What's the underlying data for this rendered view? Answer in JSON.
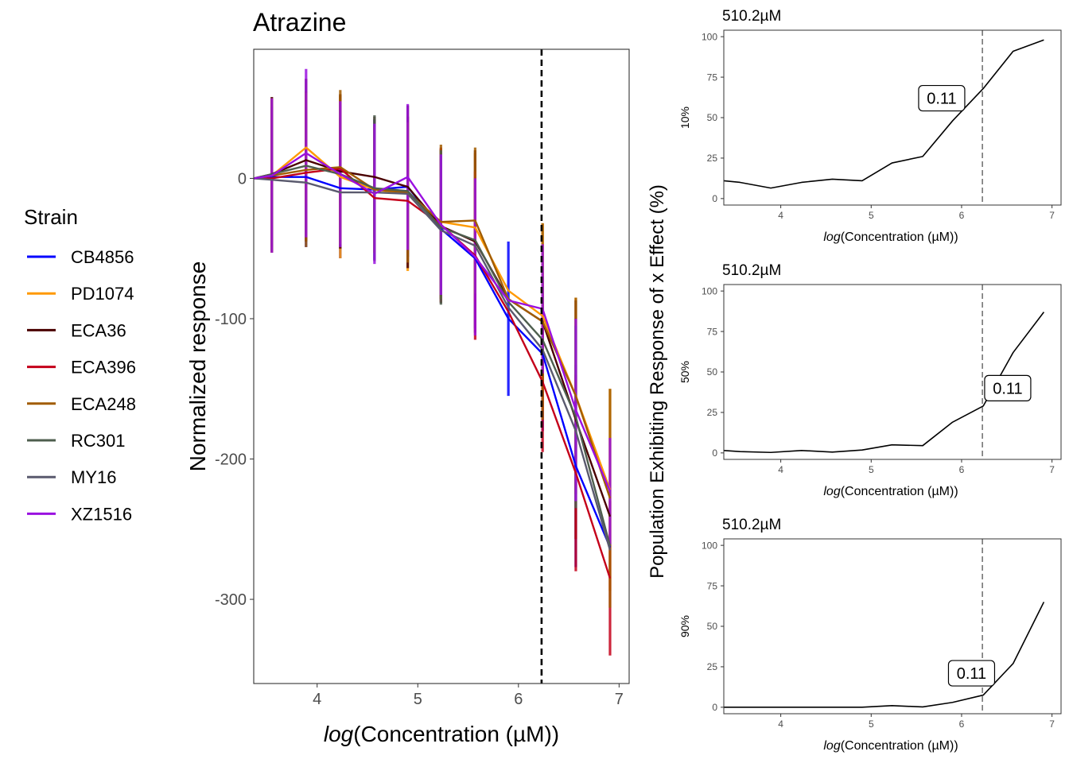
{
  "legend": {
    "title": "Strain",
    "items": [
      {
        "name": "CB4856",
        "color": "#0000FF"
      },
      {
        "name": "PD1074",
        "color": "#FF9900"
      },
      {
        "name": "ECA36",
        "color": "#4A0000"
      },
      {
        "name": "ECA396",
        "color": "#C4001A"
      },
      {
        "name": "ECA248",
        "color": "#A15C00"
      },
      {
        "name": "RC301",
        "color": "#4E5E4E"
      },
      {
        "name": "MY16",
        "color": "#5A5A6E"
      },
      {
        "name": "XZ1516",
        "color": "#9A10E0"
      }
    ]
  },
  "side_ylabel": "Population Exhibiting Response of x Effect (%)",
  "chart_data": [
    {
      "type": "line",
      "title": "Atrazine",
      "xlabel_prefix": "log",
      "xlabel_body": "Concentration (µM)",
      "ylabel": "Normalized response",
      "xlim": [
        3.37,
        7.1
      ],
      "ylim": [
        -360,
        92
      ],
      "xticks": [
        4,
        5,
        6,
        7
      ],
      "xtick_labels": [
        "4",
        "5",
        "6",
        "7"
      ],
      "yticks": [
        0,
        -100,
        -200,
        -300
      ],
      "ytick_labels": [
        "0",
        "-100",
        "-200",
        "-300"
      ],
      "vline_x": 6.23,
      "x": [
        3.37,
        3.55,
        3.89,
        4.23,
        4.57,
        4.9,
        5.23,
        5.57,
        5.9,
        6.24,
        6.57,
        6.91
      ],
      "series": [
        {
          "name": "CB4856",
          "color": "#0000FF",
          "values": [
            0,
            1,
            1,
            -7,
            -8,
            -6,
            -36,
            -57,
            -100,
            -125,
            -205,
            -263
          ],
          "err": [
            0,
            50,
            50,
            50,
            50,
            50,
            50,
            50,
            55,
            55,
            72,
            0
          ]
        },
        {
          "name": "PD1074",
          "color": "#FF9900",
          "values": [
            0,
            2,
            22,
            1,
            -8,
            -11,
            -31,
            -35,
            -80,
            -98,
            -155,
            -222
          ],
          "err": [
            0,
            55,
            40,
            58,
            45,
            55,
            52,
            53,
            0,
            66,
            70,
            72
          ]
        },
        {
          "name": "ECA36",
          "color": "#4A0000",
          "values": [
            0,
            3,
            13,
            5,
            1,
            -6,
            -34,
            -45,
            -86,
            -102,
            -172,
            -241
          ],
          "err": [
            0,
            55,
            58,
            55,
            43,
            58,
            55,
            65,
            0,
            0,
            85,
            0
          ]
        },
        {
          "name": "ECA396",
          "color": "#C4001A",
          "values": [
            0,
            0,
            4,
            7,
            -14,
            -16,
            -33,
            -55,
            -95,
            -145,
            -210,
            -285
          ],
          "err": [
            0,
            0,
            0,
            0,
            0,
            0,
            55,
            60,
            0,
            50,
            70,
            55
          ]
        },
        {
          "name": "ECA248",
          "color": "#A15C00",
          "values": [
            0,
            2,
            6,
            8,
            -8,
            -10,
            -31,
            -30,
            -86,
            -102,
            -155,
            -228
          ],
          "err": [
            0,
            55,
            55,
            55,
            45,
            50,
            55,
            52,
            0,
            70,
            70,
            78
          ]
        },
        {
          "name": "RC301",
          "color": "#4E5E4E",
          "values": [
            0,
            3,
            9,
            3,
            -7,
            -9,
            -35,
            -44,
            -88,
            -115,
            -170,
            -262
          ],
          "err": [
            0,
            0,
            0,
            0,
            52,
            0,
            55,
            0,
            0,
            0,
            65,
            0
          ]
        },
        {
          "name": "MY16",
          "color": "#5A5A6E",
          "values": [
            0,
            -1,
            -3,
            -10,
            -10,
            -11,
            -37,
            -48,
            -92,
            -122,
            -180,
            -265
          ],
          "err": [
            0,
            0,
            0,
            0,
            0,
            0,
            0,
            0,
            0,
            0,
            0,
            0
          ]
        },
        {
          "name": "XZ1516",
          "color": "#9A10E0",
          "values": [
            0,
            2,
            18,
            3,
            -11,
            1,
            -33,
            -56,
            -87,
            -93,
            -165,
            -223
          ],
          "err": [
            0,
            55,
            60,
            52,
            50,
            52,
            50,
            56,
            0,
            46,
            65,
            38
          ]
        }
      ]
    },
    {
      "type": "line",
      "title": "510.2µM",
      "ylabel": "10%",
      "xlabel_prefix": "log",
      "xlabel_body": "Concentration (µM)",
      "xlim": [
        3.37,
        7.1
      ],
      "ylim": [
        -4,
        104
      ],
      "xticks": [
        4,
        5,
        6,
        7
      ],
      "xtick_labels": [
        "4",
        "5",
        "6",
        "7"
      ],
      "yticks": [
        0,
        25,
        50,
        75,
        100
      ],
      "ytick_labels": [
        "0",
        "25",
        "50",
        "75",
        "100"
      ],
      "vline_x": 6.23,
      "annotation": "0.11",
      "annotation_x": 5.78,
      "annotation_y": 62,
      "x": [
        3.37,
        3.55,
        3.89,
        4.23,
        4.57,
        4.9,
        5.23,
        5.57,
        5.9,
        6.24,
        6.57,
        6.91
      ],
      "series": [
        {
          "values": [
            11,
            10,
            6.5,
            10,
            12,
            11,
            22,
            26,
            48,
            68,
            91,
            98
          ]
        }
      ]
    },
    {
      "type": "line",
      "title": "510.2µM",
      "ylabel": "50%",
      "xlabel_prefix": "log",
      "xlabel_body": "Concentration (µM)",
      "xlim": [
        3.37,
        7.1
      ],
      "ylim": [
        -4,
        104
      ],
      "xticks": [
        4,
        5,
        6,
        7
      ],
      "xtick_labels": [
        "4",
        "5",
        "6",
        "7"
      ],
      "yticks": [
        0,
        25,
        50,
        75,
        100
      ],
      "ytick_labels": [
        "0",
        "25",
        "50",
        "75",
        "100"
      ],
      "vline_x": 6.23,
      "annotation": "0.11",
      "annotation_x": 6.51,
      "annotation_y": 40,
      "x": [
        3.37,
        3.55,
        3.89,
        4.23,
        4.57,
        4.9,
        5.23,
        5.57,
        5.9,
        6.24,
        6.57,
        6.91
      ],
      "series": [
        {
          "values": [
            1.5,
            0.8,
            0.3,
            1.5,
            0.5,
            1.8,
            5,
            4.5,
            19,
            29,
            62,
            87
          ]
        }
      ]
    },
    {
      "type": "line",
      "title": "510.2µM",
      "ylabel": "90%",
      "xlabel_prefix": "log",
      "xlabel_body": "Concentration (µM)",
      "xlim": [
        3.37,
        7.1
      ],
      "ylim": [
        -4,
        104
      ],
      "xticks": [
        4,
        5,
        6,
        7
      ],
      "xtick_labels": [
        "4",
        "5",
        "6",
        "7"
      ],
      "yticks": [
        0,
        25,
        50,
        75,
        100
      ],
      "ytick_labels": [
        "0",
        "25",
        "50",
        "75",
        "100"
      ],
      "vline_x": 6.23,
      "annotation": "0.11",
      "annotation_x": 6.11,
      "annotation_y": 21,
      "x": [
        3.37,
        3.55,
        3.89,
        4.23,
        4.57,
        4.9,
        5.23,
        5.57,
        5.9,
        6.24,
        6.57,
        6.91
      ],
      "series": [
        {
          "values": [
            0,
            0,
            0,
            0,
            0,
            0,
            1,
            0.2,
            3,
            7.5,
            27,
            65
          ]
        }
      ]
    }
  ]
}
